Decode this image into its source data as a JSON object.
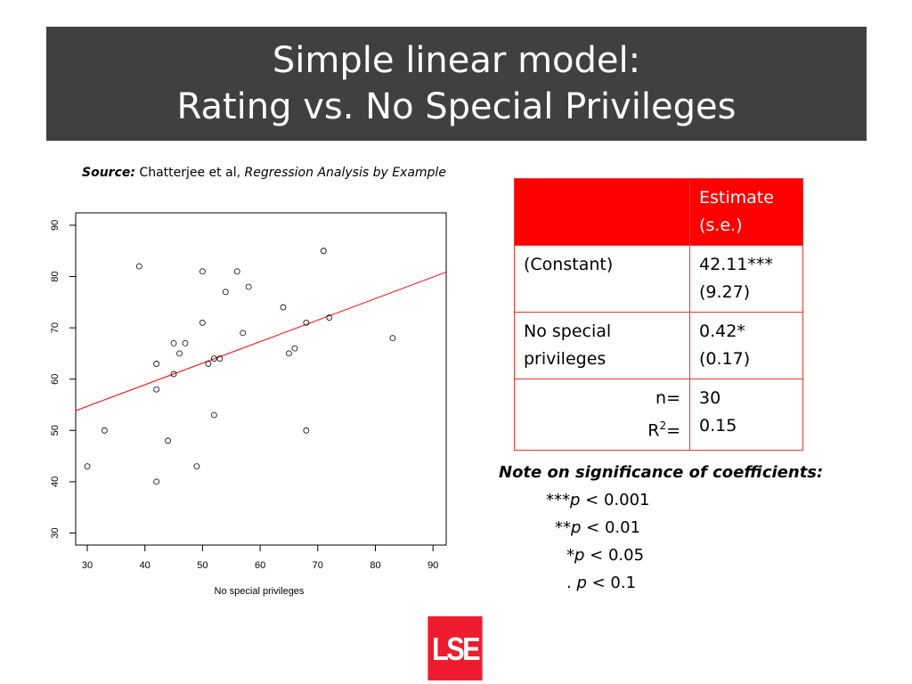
{
  "slide": {
    "title_line1": "Simple linear model:",
    "title_line2": "Rating vs. No Special Privileges"
  },
  "source": {
    "label": "Source:",
    "author": " Chatterjee et al, ",
    "book": "Regression Analysis by Example"
  },
  "chart_data": {
    "type": "scatter",
    "xlabel": "No special privileges",
    "ylabel": "",
    "xlim": [
      30,
      90
    ],
    "ylim": [
      30,
      90
    ],
    "xticks": [
      30,
      40,
      50,
      60,
      70,
      80,
      90
    ],
    "yticks": [
      30,
      40,
      50,
      60,
      70,
      80,
      90
    ],
    "points": [
      [
        30,
        43
      ],
      [
        33,
        50
      ],
      [
        39,
        82
      ],
      [
        42,
        63
      ],
      [
        42,
        58
      ],
      [
        42,
        40
      ],
      [
        44,
        48
      ],
      [
        45,
        67
      ],
      [
        45,
        61
      ],
      [
        46,
        65
      ],
      [
        47,
        67
      ],
      [
        49,
        43
      ],
      [
        50,
        81
      ],
      [
        50,
        71
      ],
      [
        51,
        63
      ],
      [
        52,
        64
      ],
      [
        52,
        53
      ],
      [
        53,
        64
      ],
      [
        54,
        77
      ],
      [
        56,
        81
      ],
      [
        57,
        69
      ],
      [
        58,
        78
      ],
      [
        64,
        74
      ],
      [
        65,
        65
      ],
      [
        66,
        66
      ],
      [
        68,
        71
      ],
      [
        68,
        50
      ],
      [
        71,
        85
      ],
      [
        72,
        72
      ],
      [
        83,
        68
      ]
    ],
    "fit_line": {
      "intercept": 42.11,
      "slope": 0.42,
      "color": "#ff0000"
    }
  },
  "table": {
    "header": {
      "col1": "",
      "col2_line1": "Estimate",
      "col2_line2": "(s.e.)"
    },
    "rows": [
      {
        "label_line1": "(Constant)",
        "label_line2": "",
        "est": "42.11***",
        "se": "(9.27)"
      },
      {
        "label_line1": "No special",
        "label_line2": "privileges",
        "est": "0.42*",
        "se": "(0.17)"
      }
    ],
    "stats": {
      "n_label": "n=",
      "n_value": "30",
      "r2_label_base": "R",
      "r2_label_sup": "2",
      "r2_label_eq": "=",
      "r2_value": "0.15"
    },
    "header_color": "#ff0000"
  },
  "note": {
    "heading": "Note on significance of coefficients:",
    "l1_stars": "***",
    "l1_p": "p",
    "l1_rest": " < 0.001",
    "l2_stars": "**",
    "l2_p": "p",
    "l2_rest": " < 0.01",
    "l3_stars": "*",
    "l3_p": "p",
    "l3_rest": " < 0.05",
    "l4_stars": ". ",
    "l4_p": "p",
    "l4_rest": " < 0.1"
  },
  "logo": {
    "text": "LSE",
    "color": "#ee1c2e"
  }
}
